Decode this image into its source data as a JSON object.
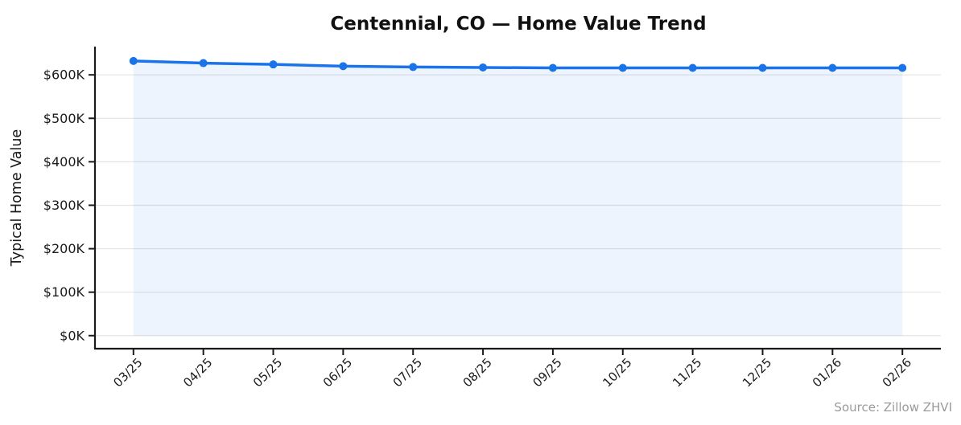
{
  "title": "Centennial, CO — Home Value Trend",
  "source_note": "Source: Zillow ZHVI",
  "colors": {
    "line": "#1A73E8",
    "fill": "rgba(26,115,232,0.08)",
    "grid": "#E4E4E4",
    "axis": "#1A1A1A",
    "tick_text": "#1A1A1A",
    "source_text": "#9A9A9A",
    "background": "#FFFFFF"
  },
  "chart_data": {
    "type": "line",
    "title": "Centennial, CO — Home Value Trend",
    "xlabel": "",
    "ylabel": "Typical Home Value",
    "x": [
      "03/25",
      "04/25",
      "05/25",
      "06/25",
      "07/25",
      "08/25",
      "09/25",
      "10/25",
      "11/25",
      "12/25",
      "01/26",
      "02/26"
    ],
    "series": [
      {
        "name": "Typical Home Value",
        "values": [
          632000,
          627000,
          624000,
          620000,
          618000,
          617000,
          616000,
          616000,
          616000,
          616000,
          616000,
          616000
        ]
      }
    ],
    "yticks": [
      0,
      100000,
      200000,
      300000,
      400000,
      500000,
      600000
    ],
    "ytick_labels": [
      "$0K",
      "$100K",
      "$200K",
      "$300K",
      "$400K",
      "$500K",
      "$600K"
    ],
    "ylim": [
      -30000,
      665000
    ],
    "grid": true,
    "area_fill": true,
    "area_baseline": 0,
    "marker": "circle",
    "x_tick_rotation": 45,
    "legend_position": "none",
    "source_annotation": "Source: Zillow ZHVI"
  }
}
